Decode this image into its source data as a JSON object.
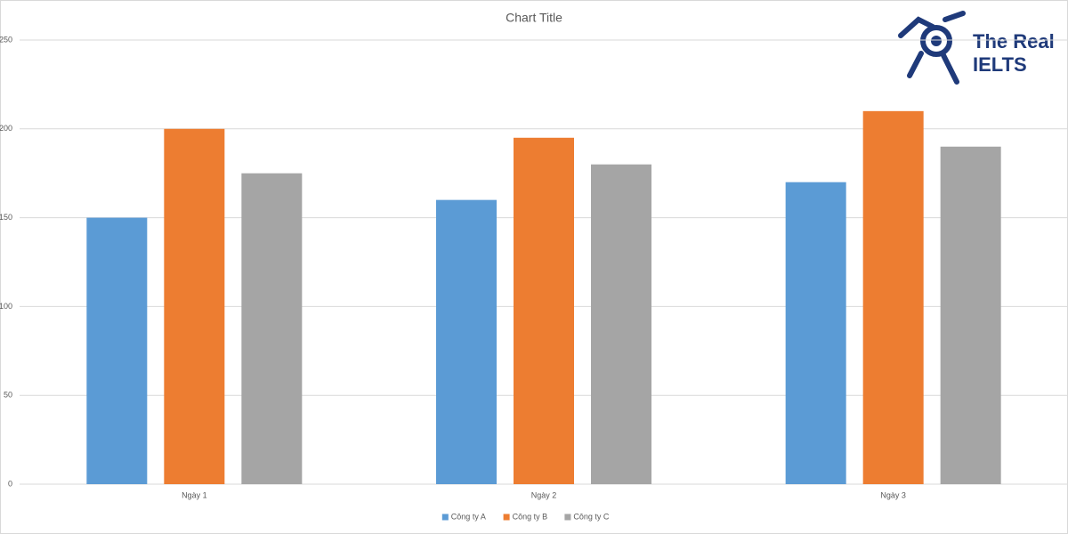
{
  "chart_data": {
    "type": "bar",
    "title": "Chart Title",
    "categories": [
      "Ngày 1",
      "Ngày 2",
      "Ngày 3"
    ],
    "series": [
      {
        "name": "Công ty A",
        "color": "#5b9bd5",
        "values": [
          150,
          160,
          170
        ]
      },
      {
        "name": "Công ty B",
        "color": "#ed7d31",
        "values": [
          200,
          195,
          210
        ]
      },
      {
        "name": "Công ty C",
        "color": "#a5a5a5",
        "values": [
          175,
          180,
          190
        ]
      }
    ],
    "ylim": [
      0,
      250
    ],
    "yticks": [
      0,
      50,
      100,
      150,
      200,
      250
    ],
    "grid": true,
    "legend": "bottom"
  },
  "logo": {
    "line1": "The Real",
    "line2": "IELTS"
  }
}
